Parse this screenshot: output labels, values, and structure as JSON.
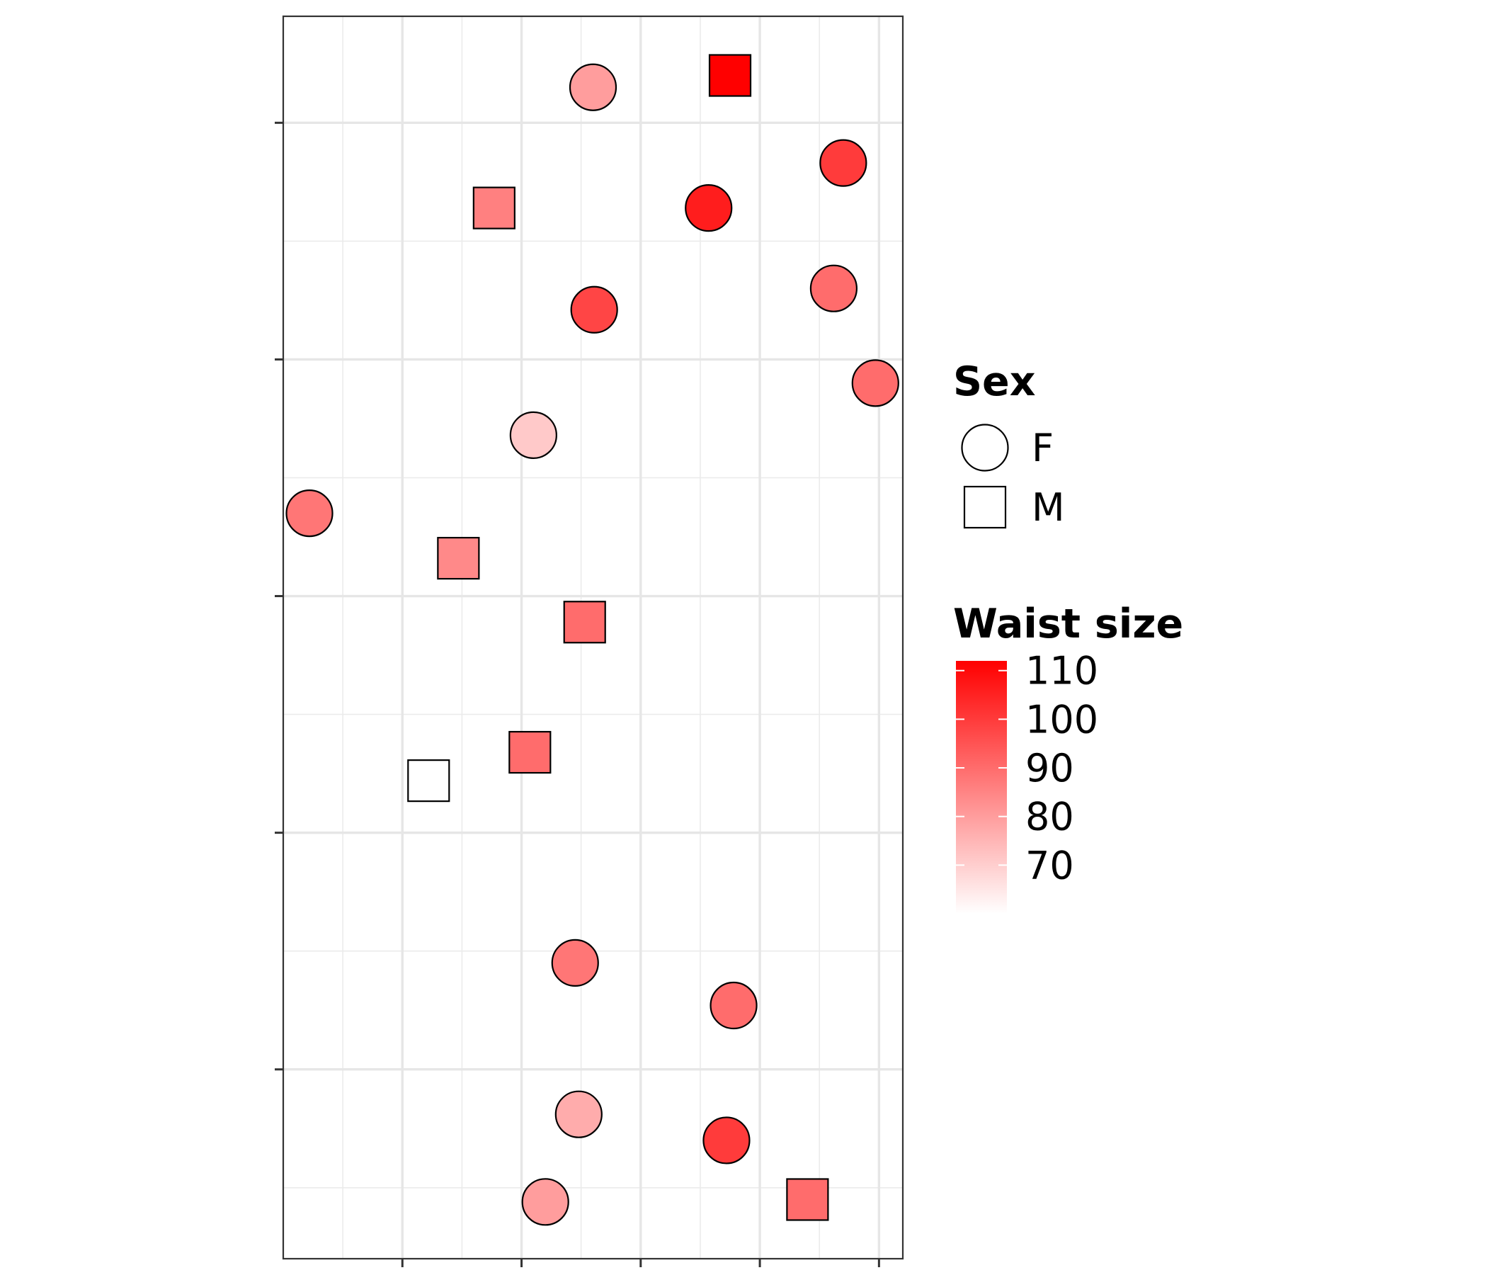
{
  "chart_data": {
    "type": "scatter",
    "title": "",
    "xlabel": "",
    "ylabel": "",
    "xlim": [
      0,
      5.2
    ],
    "ylim": [
      0,
      5.25
    ],
    "x_ticks": [
      1,
      2,
      3,
      4,
      5
    ],
    "y_ticks": [
      0.8,
      1.8,
      2.8,
      3.8,
      4.8
    ],
    "grid": true,
    "legend_placement": "right",
    "fill_scale": {
      "title": "Waist size",
      "low_color": "#ffffff",
      "high_color": "#ff0000",
      "min": 60,
      "max": 112,
      "breaks": [
        110,
        100,
        90,
        80,
        70
      ]
    },
    "shape_legend": {
      "title": "Sex",
      "entries": [
        {
          "label": "F",
          "shape": "circle"
        },
        {
          "label": "M",
          "shape": "square"
        }
      ]
    },
    "points": [
      {
        "x": 2.6,
        "y": 4.95,
        "sex": "F",
        "waist": 80
      },
      {
        "x": 3.75,
        "y": 5.0,
        "sex": "M",
        "waist": 112
      },
      {
        "x": 4.7,
        "y": 4.63,
        "sex": "F",
        "waist": 100
      },
      {
        "x": 1.77,
        "y": 4.44,
        "sex": "M",
        "waist": 86
      },
      {
        "x": 3.57,
        "y": 4.44,
        "sex": "F",
        "waist": 106
      },
      {
        "x": 4.62,
        "y": 4.1,
        "sex": "F",
        "waist": 90
      },
      {
        "x": 2.61,
        "y": 4.01,
        "sex": "F",
        "waist": 98
      },
      {
        "x": 4.97,
        "y": 3.7,
        "sex": "F",
        "waist": 90
      },
      {
        "x": 2.1,
        "y": 3.48,
        "sex": "F",
        "waist": 71
      },
      {
        "x": 0.22,
        "y": 3.15,
        "sex": "F",
        "waist": 88
      },
      {
        "x": 1.47,
        "y": 2.96,
        "sex": "M",
        "waist": 84
      },
      {
        "x": 2.53,
        "y": 2.69,
        "sex": "M",
        "waist": 90
      },
      {
        "x": 1.22,
        "y": 2.02,
        "sex": "M",
        "waist": 60
      },
      {
        "x": 2.07,
        "y": 2.14,
        "sex": "M",
        "waist": 90
      },
      {
        "x": 2.45,
        "y": 1.25,
        "sex": "F",
        "waist": 88
      },
      {
        "x": 3.78,
        "y": 1.07,
        "sex": "F",
        "waist": 90
      },
      {
        "x": 2.48,
        "y": 0.61,
        "sex": "F",
        "waist": 77
      },
      {
        "x": 3.72,
        "y": 0.5,
        "sex": "F",
        "waist": 100
      },
      {
        "x": 2.2,
        "y": 0.24,
        "sex": "F",
        "waist": 80
      },
      {
        "x": 4.4,
        "y": 0.25,
        "sex": "M",
        "waist": 90
      }
    ]
  }
}
